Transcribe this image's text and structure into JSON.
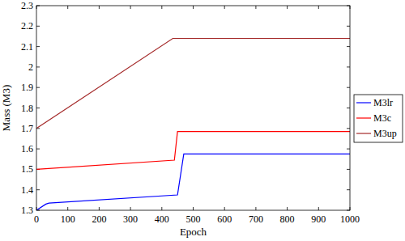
{
  "chart_data": {
    "type": "line",
    "x_label": "Epoch",
    "y_label": "Mass (M3)",
    "xlim": [
      0,
      1000
    ],
    "xticks": [
      0,
      100,
      200,
      300,
      400,
      500,
      600,
      700,
      800,
      900,
      1000
    ],
    "ylim": [
      1.3,
      2.3
    ],
    "yticks": [
      1.3,
      1.4,
      1.5,
      1.6,
      1.7,
      1.8,
      1.9,
      2,
      2.1,
      2.2,
      2.3
    ],
    "grid": false,
    "legend": "right",
    "series": [
      {
        "name": "M3lr",
        "color": "#0000ff",
        "x": [
          0,
          30,
          40,
          450,
          470,
          1000
        ],
        "values": [
          1.3,
          1.33,
          1.335,
          1.375,
          1.575,
          1.575
        ]
      },
      {
        "name": "M3c",
        "color": "#ff0000",
        "x": [
          0,
          440,
          450,
          1000
        ],
        "values": [
          1.5,
          1.545,
          1.685,
          1.685
        ]
      },
      {
        "name": "M3up",
        "color": "#a52a2a",
        "x": [
          0,
          435,
          1000
        ],
        "values": [
          1.7,
          2.14,
          2.14
        ]
      }
    ]
  }
}
